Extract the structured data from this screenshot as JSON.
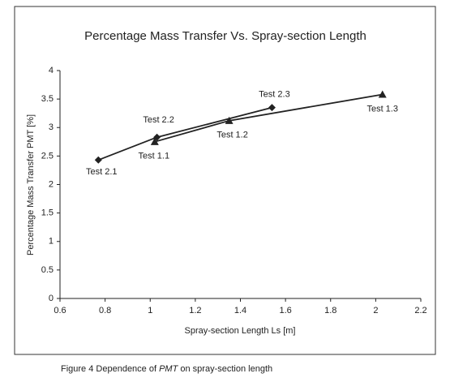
{
  "chart_data": {
    "type": "line",
    "title": "Percentage Mass Transfer Vs. Spray-section Length",
    "x_label": "Spray-section Length Ls [m]",
    "y_label": "Percentage Mass Transfer PMT [%]",
    "xlim": [
      0.6,
      2.2
    ],
    "xticks": [
      0.6,
      0.8,
      1,
      1.2,
      1.4,
      1.6,
      1.8,
      2,
      2.2
    ],
    "ylim": [
      0,
      4
    ],
    "yticks": [
      0,
      0.5,
      1,
      1.5,
      2,
      2.5,
      3,
      3.5,
      4
    ],
    "grid": false,
    "series": [
      {
        "color": "#222222",
        "marker": "diamond",
        "x": [
          0.77,
          1.03,
          1.54
        ],
        "values": [
          2.43,
          2.83,
          3.35
        ],
        "point_labels": [
          "Test 2.1",
          "Test 2.2",
          "Test 2.3"
        ]
      },
      {
        "color": "#222222",
        "marker": "triangle",
        "x": [
          1.02,
          1.35,
          2.03
        ],
        "values": [
          2.75,
          3.12,
          3.58
        ],
        "point_labels": [
          "Test 1.1",
          "Test 1.2",
          "Test 1.3"
        ]
      }
    ]
  },
  "caption": {
    "before": "Figure 4  Dependence of ",
    "em": "PMT",
    "after": " on spray-section length"
  }
}
